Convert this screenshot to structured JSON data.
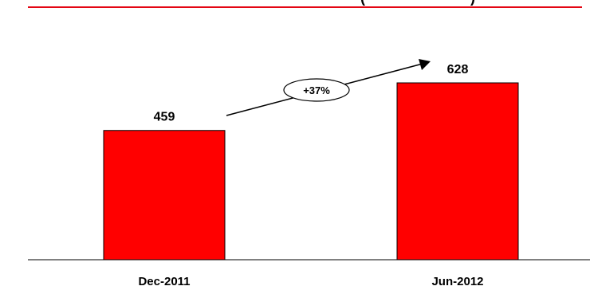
{
  "header": {
    "title_fragment": "(",
    "title_fragment_end": ")"
  },
  "chart_data": {
    "type": "bar",
    "categories": [
      "Dec-2011",
      "Jun-2012"
    ],
    "values": [
      459,
      628
    ],
    "data_labels": [
      "459",
      "628"
    ],
    "ylim": [
      0,
      700
    ],
    "grid": false,
    "annotation": {
      "text": "+37%"
    },
    "colors": {
      "bar": "#ff0000",
      "bar_stroke": "#000000",
      "top_rule": "#e30613",
      "text": "#000000"
    }
  }
}
